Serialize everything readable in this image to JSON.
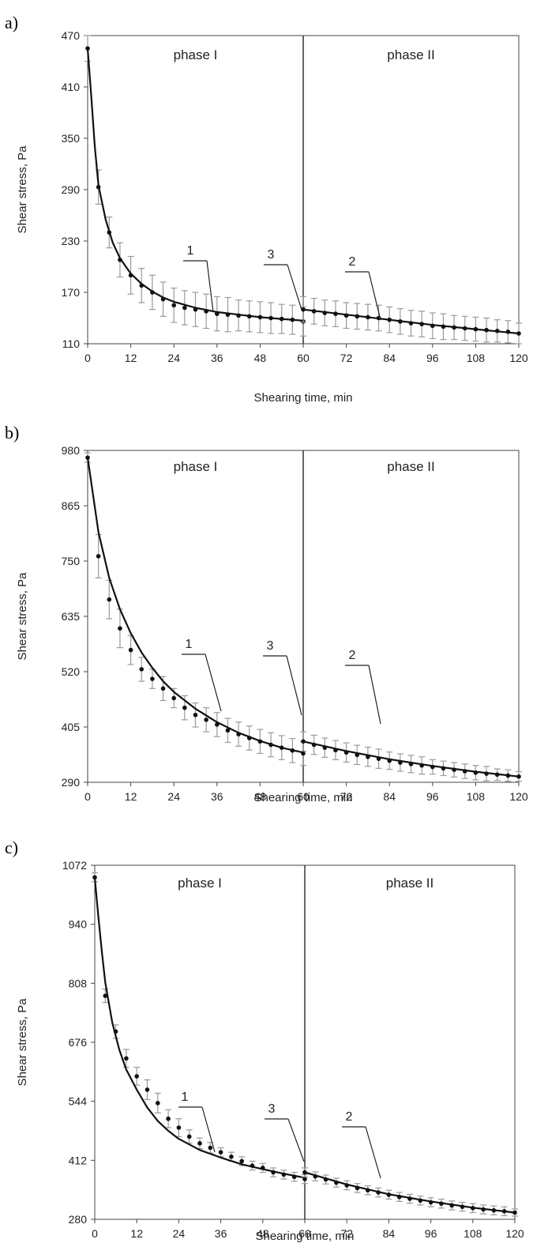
{
  "chart_data": [
    {
      "type": "line",
      "panel_label": "a)",
      "xlabel": "Shearing time, min",
      "ylabel": "Shear stress, Pa",
      "xlim": [
        0,
        120
      ],
      "ylim": [
        110,
        470
      ],
      "xticks": [
        "0",
        "12",
        "24",
        "36",
        "48",
        "60",
        "72",
        "84",
        "96",
        "108",
        "120"
      ],
      "yticks": [
        "110",
        "170",
        "230",
        "290",
        "350",
        "410",
        "470"
      ],
      "divider_x": 60,
      "phase_labels": [
        "phase I",
        "phase II"
      ],
      "curve_labels": [
        "1",
        "3",
        "2"
      ],
      "series": [
        {
          "x": [
            0,
            3,
            6,
            9,
            12,
            15,
            18,
            21,
            24,
            27,
            30,
            33,
            36,
            39,
            42,
            45,
            48,
            51,
            54,
            57,
            60
          ],
          "values": [
            455,
            293,
            240,
            208,
            190,
            178,
            170,
            162,
            155,
            152,
            150,
            148,
            145,
            144,
            143,
            142,
            141,
            140,
            139,
            138,
            136
          ],
          "errors": [
            15,
            20,
            18,
            20,
            22,
            20,
            20,
            20,
            20,
            20,
            20,
            20,
            20,
            20,
            18,
            18,
            18,
            18,
            17,
            17,
            17
          ],
          "fit": [
            [
              0,
              455
            ],
            [
              1,
              400
            ],
            [
              2,
              340
            ],
            [
              3,
              295
            ],
            [
              5,
              255
            ],
            [
              7,
              228
            ],
            [
              9,
              210
            ],
            [
              12,
              192
            ],
            [
              15,
              180
            ],
            [
              18,
              171
            ],
            [
              21,
              164
            ],
            [
              24,
              159
            ],
            [
              30,
              152
            ],
            [
              36,
              147
            ],
            [
              42,
              144
            ],
            [
              48,
              141
            ],
            [
              54,
              139
            ],
            [
              60,
              137
            ]
          ]
        },
        {
          "x": [
            60,
            63,
            66,
            69,
            72,
            75,
            78,
            81,
            84,
            87,
            90,
            93,
            96,
            99,
            102,
            105,
            108,
            111,
            114,
            117,
            120
          ],
          "values": [
            150,
            148,
            146,
            145,
            143,
            142,
            141,
            140,
            138,
            136,
            134,
            133,
            131,
            130,
            129,
            128,
            127,
            126,
            125,
            124,
            122
          ],
          "errors": [
            15,
            15,
            15,
            15,
            15,
            15,
            15,
            15,
            15,
            15,
            15,
            15,
            15,
            15,
            14,
            14,
            14,
            14,
            13,
            13,
            12
          ],
          "fit": [
            [
              60,
              150
            ],
            [
              72,
              144
            ],
            [
              84,
              138
            ],
            [
              96,
              132
            ],
            [
              108,
              127
            ],
            [
              120,
              122
            ]
          ]
        }
      ]
    },
    {
      "type": "line",
      "panel_label": "b)",
      "xlabel": "Shearing time, min",
      "ylabel": "Shear stress, Pa",
      "xlim": [
        0,
        120
      ],
      "ylim": [
        290,
        980
      ],
      "xticks": [
        "0",
        "12",
        "24",
        "36",
        "48",
        "60",
        "72",
        "84",
        "96",
        "108",
        "120"
      ],
      "yticks": [
        "290",
        "405",
        "520",
        "635",
        "750",
        "865",
        "980"
      ],
      "divider_x": 60,
      "phase_labels": [
        "phase I",
        "phase II"
      ],
      "curve_labels": [
        "1",
        "3",
        "2"
      ],
      "series": [
        {
          "x": [
            0,
            3,
            6,
            9,
            12,
            15,
            18,
            21,
            24,
            27,
            30,
            33,
            36,
            39,
            42,
            45,
            48,
            51,
            54,
            57,
            60
          ],
          "values": [
            965,
            760,
            670,
            610,
            565,
            525,
            505,
            485,
            465,
            445,
            430,
            420,
            410,
            398,
            390,
            382,
            375,
            368,
            362,
            356,
            350
          ],
          "errors": [
            10,
            45,
            40,
            40,
            30,
            25,
            20,
            25,
            20,
            25,
            25,
            25,
            25,
            25,
            25,
            25,
            25,
            25,
            25,
            25,
            25
          ],
          "fit": [
            [
              0,
              965
            ],
            [
              3,
              810
            ],
            [
              6,
              715
            ],
            [
              9,
              650
            ],
            [
              12,
              600
            ],
            [
              15,
              560
            ],
            [
              18,
              528
            ],
            [
              21,
              500
            ],
            [
              24,
              478
            ],
            [
              30,
              443
            ],
            [
              36,
              415
            ],
            [
              42,
              393
            ],
            [
              48,
              376
            ],
            [
              54,
              362
            ],
            [
              60,
              352
            ]
          ]
        },
        {
          "x": [
            60,
            63,
            66,
            69,
            72,
            75,
            78,
            81,
            84,
            87,
            90,
            93,
            96,
            99,
            102,
            105,
            108,
            111,
            114,
            117,
            120
          ],
          "values": [
            375,
            368,
            362,
            357,
            352,
            347,
            343,
            339,
            335,
            331,
            328,
            325,
            322,
            319,
            316,
            313,
            310,
            308,
            306,
            304,
            302
          ],
          "errors": [
            20,
            20,
            20,
            20,
            20,
            20,
            20,
            20,
            18,
            18,
            18,
            18,
            15,
            15,
            15,
            15,
            15,
            15,
            12,
            12,
            10
          ],
          "fit": [
            [
              60,
              375
            ],
            [
              72,
              355
            ],
            [
              84,
              338
            ],
            [
              96,
              324
            ],
            [
              108,
              312
            ],
            [
              120,
              302
            ]
          ]
        }
      ]
    },
    {
      "type": "line",
      "panel_label": "c)",
      "xlabel": "Shearing time, min",
      "ylabel": "Shear stress, Pa",
      "xlim": [
        0,
        120
      ],
      "ylim": [
        280,
        1072
      ],
      "xticks": [
        "0",
        "12",
        "24",
        "36",
        "48",
        "60",
        "72",
        "84",
        "96",
        "108",
        "120"
      ],
      "yticks": [
        "280",
        "412",
        "544",
        "676",
        "808",
        "940",
        "1072"
      ],
      "divider_x": 60,
      "phase_labels": [
        "phase I",
        "phase II"
      ],
      "curve_labels": [
        "1",
        "3",
        "2"
      ],
      "series": [
        {
          "x": [
            0,
            3,
            6,
            9,
            12,
            15,
            18,
            21,
            24,
            27,
            30,
            33,
            36,
            39,
            42,
            45,
            48,
            51,
            54,
            57,
            60
          ],
          "values": [
            1045,
            780,
            700,
            640,
            600,
            570,
            540,
            505,
            485,
            465,
            450,
            440,
            430,
            420,
            410,
            400,
            395,
            385,
            380,
            375,
            370
          ],
          "errors": [
            10,
            15,
            15,
            20,
            20,
            22,
            22,
            20,
            20,
            15,
            12,
            12,
            10,
            10,
            10,
            10,
            10,
            10,
            10,
            10,
            10
          ],
          "fit": [
            [
              0,
              1045
            ],
            [
              1,
              960
            ],
            [
              2,
              880
            ],
            [
              3,
              810
            ],
            [
              5,
              720
            ],
            [
              7,
              660
            ],
            [
              9,
              615
            ],
            [
              12,
              570
            ],
            [
              15,
              530
            ],
            [
              18,
              500
            ],
            [
              21,
              478
            ],
            [
              24,
              460
            ],
            [
              30,
              435
            ],
            [
              36,
              418
            ],
            [
              42,
              403
            ],
            [
              48,
              392
            ],
            [
              54,
              382
            ],
            [
              60,
              373
            ]
          ]
        },
        {
          "x": [
            60,
            63,
            66,
            69,
            72,
            75,
            78,
            81,
            84,
            87,
            90,
            93,
            96,
            99,
            102,
            105,
            108,
            111,
            114,
            117,
            120
          ],
          "values": [
            385,
            376,
            369,
            362,
            356,
            350,
            345,
            340,
            335,
            330,
            326,
            322,
            318,
            315,
            311,
            308,
            305,
            302,
            300,
            298,
            295
          ],
          "errors": [
            10,
            10,
            10,
            10,
            10,
            10,
            10,
            10,
            10,
            10,
            10,
            10,
            10,
            10,
            10,
            10,
            10,
            10,
            10,
            10,
            8
          ],
          "fit": [
            [
              60,
              385
            ],
            [
              72,
              358
            ],
            [
              84,
              336
            ],
            [
              96,
              320
            ],
            [
              108,
              306
            ],
            [
              120,
              295
            ]
          ]
        }
      ]
    }
  ]
}
